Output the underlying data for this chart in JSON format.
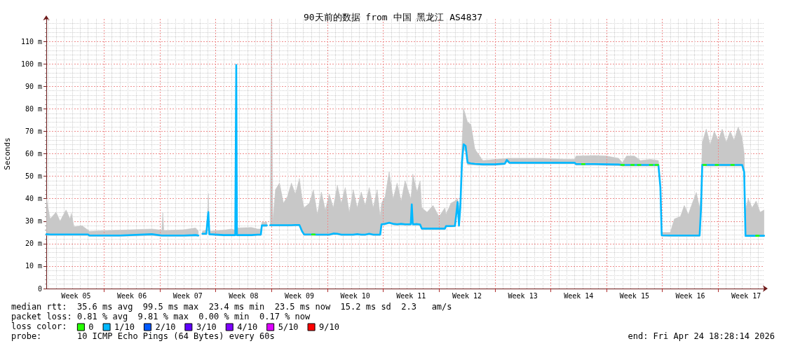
{
  "chart_data": {
    "type": "line",
    "title": "90天前的数据 from 中国 黑龙江 AS4837",
    "ylabel": "Seconds",
    "legend_title": "loss color:",
    "legend": "bottom left",
    "grid": true,
    "annotations": [
      "median rtt:  35.6 ms avg  99.5 ms max  23.4 ms min  23.5 ms now  15.2 ms sd  2.3   am/s",
      "packet loss: 0.81 % avg  9.81 % max  0.00 % min  0.17 % now",
      "probe:       10 ICMP Echo Pings (64 Bytes) every 60s",
      "end: Fri Apr 24 18:28:14 2026"
    ],
    "xlim": [
      "2026-01-24T18:28",
      "2026-04-24T18:28"
    ],
    "xticks": [
      {
        "value": "2026-01-28T12:00",
        "label": "Week 05"
      },
      {
        "value": "2026-02-01",
        "label": null
      },
      {
        "value": "2026-02-04T12:00",
        "label": "Week 06"
      },
      {
        "value": "2026-02-08",
        "label": null
      },
      {
        "value": "2026-02-11T12:00",
        "label": "Week 07"
      },
      {
        "value": "2026-02-15",
        "label": null
      },
      {
        "value": "2026-02-18T12:00",
        "label": "Week 08"
      },
      {
        "value": "2026-02-22",
        "label": null
      },
      {
        "value": "2026-02-25T12:00",
        "label": "Week 09"
      },
      {
        "value": "2026-03-01",
        "label": null
      },
      {
        "value": "2026-03-04T12:00",
        "label": "Week 10"
      },
      {
        "value": "2026-03-08",
        "label": null
      },
      {
        "value": "2026-03-11T12:00",
        "label": "Week 11"
      },
      {
        "value": "2026-03-15",
        "label": null
      },
      {
        "value": "2026-03-18T12:00",
        "label": "Week 12"
      },
      {
        "value": "2026-03-22",
        "label": null
      },
      {
        "value": "2026-03-25T12:00",
        "label": "Week 13"
      },
      {
        "value": "2026-03-29",
        "label": null
      },
      {
        "value": "2026-04-01T12:00",
        "label": "Week 14"
      },
      {
        "value": "2026-04-05",
        "label": null
      },
      {
        "value": "2026-04-08T12:00",
        "label": "Week 15"
      },
      {
        "value": "2026-04-12",
        "label": null
      },
      {
        "value": "2026-04-15T12:00",
        "label": "Week 16"
      },
      {
        "value": "2026-04-19",
        "label": null
      },
      {
        "value": "2026-04-22T12:00",
        "label": "Week 17"
      }
    ],
    "ylim": [
      0,
      120
    ],
    "yticks": [
      0,
      {
        "value": 10,
        "label": "10 m"
      },
      {
        "value": 20,
        "label": "20 m"
      },
      {
        "value": 30,
        "label": "30 m"
      },
      {
        "value": 40,
        "label": "40 m"
      },
      {
        "value": 50,
        "label": "50 m"
      },
      {
        "value": 60,
        "label": "60 m"
      },
      {
        "value": 70,
        "label": "70 m"
      },
      {
        "value": 80,
        "label": "80 m"
      },
      {
        "value": 90,
        "label": "90 m"
      },
      {
        "value": 100,
        "label": "100 m"
      },
      {
        "value": 110,
        "label": "110 m"
      }
    ],
    "x": [
      "2026-01-24T19:00",
      "2026-01-25T06:00",
      "2026-01-26T00:00",
      "2026-01-26T12:00",
      "2026-01-27T06:00",
      "2026-01-27T18:00",
      "2026-01-27T22:00",
      "2026-01-28T06:00",
      "2026-01-29T06:00",
      "2026-01-30T00:00",
      "2026-01-30T04:00",
      "2026-02-03T00:00",
      "2026-02-07T00:00",
      "2026-02-08T06:00",
      "2026-02-08T09:00",
      "2026-02-08T12:00",
      "2026-02-11T00:00",
      "2026-02-12T12:00",
      "2026-02-12T20:00",
      "2026-02-13T02:00",
      "2026-02-13T08:00",
      "2026-02-13T20:00",
      "2026-02-13T23:00",
      "2026-02-14T02:00",
      "2026-02-14T05:00",
      "2026-02-16T00:00",
      "2026-02-17T00:00",
      "2026-02-17T11:00",
      "2026-02-17T14:00",
      "2026-02-17T16:00",
      "2026-02-19T12:00",
      "2026-02-20T06:00",
      "2026-02-20T16:00",
      "2026-02-20T19:00",
      "2026-02-21T10:00",
      "2026-02-21T15:00",
      "2026-02-21T20:00",
      "2026-02-22T00:00",
      "2026-02-22T04:00",
      "2026-02-22T12:00",
      "2026-02-23T00:00",
      "2026-02-23T12:00",
      "2026-02-24T00:00",
      "2026-02-24T12:00",
      "2026-02-25T00:00",
      "2026-02-25T12:00",
      "2026-02-25T20:00",
      "2026-02-26T02:00",
      "2026-02-26T18:00",
      "2026-02-27T06:00",
      "2026-02-27T18:00",
      "2026-02-28T06:00",
      "2026-02-28T18:00",
      "2026-03-01T06:00",
      "2026-03-01T18:00",
      "2026-03-02T06:00",
      "2026-03-02T18:00",
      "2026-03-03T06:00",
      "2026-03-03T18:00",
      "2026-03-04T06:00",
      "2026-03-04T18:00",
      "2026-03-05T06:00",
      "2026-03-05T18:00",
      "2026-03-06T06:00",
      "2026-03-06T18:00",
      "2026-03-07T06:00",
      "2026-03-07T15:00",
      "2026-03-07T19:00",
      "2026-03-08T06:00",
      "2026-03-08T18:00",
      "2026-03-09T06:00",
      "2026-03-09T18:00",
      "2026-03-10T06:00",
      "2026-03-10T18:00",
      "2026-03-11T11:00",
      "2026-03-11T14:00",
      "2026-03-11T17:00",
      "2026-03-12T06:00",
      "2026-03-12T15:00",
      "2026-03-12T20:00",
      "2026-03-13T12:00",
      "2026-03-14T06:00",
      "2026-03-15T00:00",
      "2026-03-15T18:00",
      "2026-03-15T21:00",
      "2026-03-16T12:00",
      "2026-03-17T00:00",
      "2026-03-17T08:00",
      "2026-03-17T12:00",
      "2026-03-17T16:00",
      "2026-03-17T21:00",
      "2026-03-18T02:00",
      "2026-03-18T08:00",
      "2026-03-18T14:00",
      "2026-03-19T00:00",
      "2026-03-19T12:00",
      "2026-03-20T12:00",
      "2026-03-22T00:00",
      "2026-03-23T06:00",
      "2026-03-23T12:00",
      "2026-03-23T20:00",
      "2026-03-26T00:00",
      "2026-03-28T00:00",
      "2026-03-31T00:00",
      "2026-04-01T00:00",
      "2026-04-01T04:00",
      "2026-04-03T12:00",
      "2026-04-05T00:00",
      "2026-04-06T12:00",
      "2026-04-07T00:00",
      "2026-04-07T12:00",
      "2026-04-08T12:00",
      "2026-04-09T06:00",
      "2026-04-10T12:00",
      "2026-04-11T12:00",
      "2026-04-11T18:00",
      "2026-04-11T22:00",
      "2026-04-13T00:00",
      "2026-04-13T12:00",
      "2026-04-14T06:00",
      "2026-04-14T18:00",
      "2026-04-15T06:00",
      "2026-04-15T18:00",
      "2026-04-16T06:00",
      "2026-04-16T16:00",
      "2026-04-16T20:00",
      "2026-04-17T00:00",
      "2026-04-17T12:00",
      "2026-04-18T00:00",
      "2026-04-18T12:00",
      "2026-04-19T00:00",
      "2026-04-19T12:00",
      "2026-04-20T00:00",
      "2026-04-20T12:00",
      "2026-04-21T00:00",
      "2026-04-21T12:00",
      "2026-04-22T00:00",
      "2026-04-22T06:00",
      "2026-04-22T10:00",
      "2026-04-22T18:00",
      "2026-04-23T06:00",
      "2026-04-23T18:00",
      "2026-04-24T06:00",
      "2026-04-24T18:00"
    ],
    "series": [
      {
        "name": "0",
        "color": "#26ff00",
        "x": [
          "2026-02-27T02:00",
          "2026-02-27T10:00",
          "2026-03-15T00:00",
          "2026-04-01T22:00",
          "2026-04-02T06:00",
          "2026-04-04T00:00",
          "2026-04-06T20:00",
          "2026-04-07T04:00",
          "2026-04-07T15:00",
          "2026-04-08T02:00",
          "2026-04-08T10:00",
          "2026-04-08T16:00",
          "2026-04-08T22:00",
          "2026-04-09T06:00",
          "2026-04-10T00:00",
          "2026-04-10T10:00",
          "2026-04-10T18:00",
          "2026-04-11T00:00",
          "2026-04-11T03:00",
          "2026-04-11T11:00",
          "2026-04-14T00:00",
          "2026-04-17T03:00",
          "2026-04-17T11:00",
          "2026-04-18T00:00",
          "2026-04-18T16:00",
          "2026-04-19T00:00",
          "2026-04-19T12:00",
          "2026-04-20T15:00",
          "2026-04-20T23:00",
          "2026-04-22T00:00",
          "2026-04-23T18:00",
          "2026-04-24T02:00"
        ],
        "values": [
          24.1,
          24.1,
          null,
          55.4,
          55.4,
          null,
          55,
          55,
          null,
          55,
          55,
          null,
          55,
          55,
          null,
          55,
          55,
          null,
          55,
          55,
          null,
          55,
          55,
          null,
          55,
          55,
          null,
          55,
          55,
          null,
          23.5,
          23.5
        ]
      },
      {
        "name": "1/10",
        "color": "#00b8ff",
        "values": [
          24.2,
          24.1,
          24.1,
          24.1,
          24.1,
          24.1,
          24.1,
          24.1,
          24.1,
          24.1,
          23.6,
          23.6,
          24.2,
          23.6,
          23.6,
          23.6,
          23.6,
          23.8,
          23.6,
          null,
          24.4,
          24.4,
          29.4,
          34,
          24.2,
          23.8,
          23.8,
          23.8,
          99.5,
          23.8,
          23.8,
          24,
          24,
          28.1,
          28.1,
          null,
          28.2,
          28.2,
          28.2,
          28.2,
          28.2,
          28.2,
          28.2,
          28.2,
          28.3,
          28.3,
          25.5,
          24.1,
          24.1,
          24.1,
          24,
          24,
          24,
          24,
          24.5,
          24.4,
          24,
          24,
          24,
          24,
          24.2,
          24,
          24,
          24.4,
          24,
          24,
          24,
          28.6,
          28.8,
          29.3,
          28.8,
          28.6,
          28.8,
          28.6,
          28.6,
          37.5,
          28.6,
          28.7,
          28.5,
          26.7,
          26.7,
          26.7,
          26.7,
          26.7,
          27.8,
          27.8,
          27.9,
          38.5,
          28,
          36,
          56.3,
          64.2,
          63.5,
          56,
          55.7,
          55.5,
          55.3,
          55.3,
          55.6,
          57.2,
          56,
          56,
          56,
          56,
          56,
          55.4,
          55.4,
          55.3,
          55.2,
          55,
          55,
          55,
          55,
          55,
          55,
          45,
          23.7,
          23.6,
          23.6,
          23.6,
          23.6,
          23.6,
          23.6,
          23.6,
          23.6,
          35,
          55.1,
          55,
          55,
          55,
          55,
          55,
          55,
          55,
          55,
          55,
          55,
          51.9,
          23.5,
          23.5,
          23.5,
          23.5,
          23.5,
          23.5
        ],
        "lower": [
          23.7,
          23.6,
          23.6,
          23.6,
          23.6,
          23.6,
          23.6,
          23.6,
          23.6,
          23.6,
          23.2,
          23.2,
          23.6,
          23.2,
          23.2,
          23.2,
          23.2,
          23.4,
          23.2,
          null,
          24,
          24,
          29,
          33.5,
          23.8,
          23.4,
          23.4,
          23.4,
          69,
          23.4,
          23.4,
          23.6,
          23.6,
          27.7,
          27.7,
          null,
          27.8,
          27.8,
          27.8,
          27.8,
          27.8,
          27.8,
          27.8,
          27.8,
          27.9,
          27.9,
          25,
          23.6,
          23.6,
          23.6,
          23.6,
          23.6,
          23.6,
          23.6,
          24,
          24,
          23.6,
          23.6,
          23.6,
          23.6,
          23.8,
          23.6,
          23.6,
          24,
          23.6,
          23.6,
          23.6,
          28.2,
          28.4,
          28.9,
          28.4,
          28.2,
          28.4,
          28.2,
          28.2,
          36,
          28.2,
          28.3,
          28.1,
          26.3,
          26.3,
          26.3,
          26.3,
          26.3,
          27.4,
          27.4,
          27.5,
          37,
          27.6,
          35,
          55,
          62,
          61,
          55,
          55,
          55,
          54.8,
          54.8,
          55.2,
          56.5,
          55.5,
          55.5,
          55.5,
          55.5,
          55.5,
          54.9,
          54.9,
          54.8,
          54.7,
          54.5,
          54.5,
          54.5,
          54.5,
          54.5,
          54.5,
          44.5,
          23.3,
          23.2,
          23.2,
          23.2,
          23.2,
          23.2,
          23.2,
          23.2,
          23.2,
          34.5,
          54.6,
          54.5,
          54.5,
          54.5,
          54.5,
          54.5,
          54.5,
          54.5,
          54.5,
          54.5,
          54.5,
          51.4,
          23.1,
          23.1,
          23.1,
          23.1,
          23.1,
          23.1
        ],
        "upper": [
          40,
          31,
          34,
          30,
          35,
          31,
          33.5,
          27.5,
          28,
          26,
          25.5,
          26,
          26.5,
          26,
          34,
          25.8,
          26.2,
          27,
          25.5,
          null,
          25.5,
          26,
          32,
          42.3,
          25.5,
          26,
          26.5,
          26,
          99.5,
          27,
          27.2,
          26.5,
          26.5,
          29.5,
          29.5,
          null,
          28.5,
          120,
          30,
          44,
          47,
          38,
          41,
          47,
          42,
          49,
          40,
          36,
          38,
          44,
          33,
          43,
          35,
          42,
          36,
          46,
          38,
          45,
          34,
          44,
          36,
          43,
          37,
          45,
          36,
          44,
          32,
          38,
          41,
          52,
          40,
          47,
          39,
          48,
          40,
          44,
          51,
          43,
          48,
          36,
          34,
          37,
          32,
          36,
          33,
          38,
          39,
          40,
          36,
          40,
          64,
          80,
          77,
          74,
          73,
          62,
          57,
          57.5,
          57.8,
          58,
          58,
          58,
          58,
          57.5,
          57.5,
          59,
          59.2,
          59,
          58,
          56,
          59,
          59,
          57,
          57.5,
          57,
          46,
          25,
          25,
          31,
          32,
          37,
          33,
          38,
          42.8,
          36,
          42,
          65,
          71,
          64,
          70,
          66,
          71,
          65,
          70,
          66,
          72,
          67,
          60,
          35,
          40,
          36,
          39,
          34,
          35
        ]
      },
      {
        "name": "2/10",
        "color": "#0059ff",
        "values": [
          null,
          null,
          null,
          null,
          null,
          null,
          null,
          null,
          null,
          null,
          null,
          null,
          null,
          null,
          null,
          null,
          null,
          null,
          null,
          null,
          null,
          null,
          null,
          null,
          null,
          null,
          null,
          null,
          null,
          null,
          null,
          null,
          null,
          null,
          null,
          null,
          null,
          null,
          null,
          null,
          null,
          null,
          null,
          null,
          null,
          null,
          null,
          null,
          null,
          null,
          null,
          null,
          null,
          null,
          null,
          null,
          null,
          null,
          null,
          null,
          null,
          null,
          null,
          null,
          null,
          null,
          null,
          null,
          null,
          null,
          null,
          null,
          null,
          null,
          null,
          null,
          null,
          null,
          null,
          null,
          null,
          null,
          null,
          null,
          null,
          null,
          null,
          null,
          null,
          null,
          null,
          null,
          null,
          null,
          null,
          null,
          null,
          null,
          null,
          null,
          null,
          null,
          null,
          null,
          null,
          null,
          null,
          null,
          null,
          null,
          null,
          null,
          null,
          null,
          null,
          null,
          null,
          null,
          null,
          null,
          null,
          null,
          null,
          null,
          null,
          null,
          null,
          null,
          null,
          null,
          null,
          null,
          null,
          null,
          null,
          null,
          null,
          null,
          null,
          null,
          null,
          null,
          null,
          null
        ]
      },
      {
        "name": "3/10",
        "color": "#5e00ff",
        "values": [
          null,
          null,
          null,
          null,
          null,
          null,
          null,
          null,
          null,
          null,
          null,
          null,
          null,
          null,
          null,
          null,
          null,
          null,
          null,
          null,
          null,
          null,
          null,
          null,
          null,
          null,
          null,
          null,
          null,
          null,
          null,
          null,
          null,
          null,
          null,
          null,
          null,
          null,
          null,
          null,
          null,
          null,
          null,
          null,
          null,
          null,
          null,
          null,
          null,
          null,
          null,
          null,
          null,
          null,
          null,
          null,
          null,
          null,
          null,
          null,
          null,
          null,
          null,
          null,
          null,
          null,
          null,
          null,
          null,
          null,
          null,
          null,
          null,
          null,
          null,
          null,
          null,
          null,
          null,
          null,
          null,
          null,
          null,
          null,
          null,
          null,
          null,
          null,
          null,
          null,
          null,
          null,
          null,
          null,
          null,
          null,
          null,
          null,
          null,
          null,
          null,
          null,
          null,
          null,
          null,
          null,
          null,
          null,
          null,
          null,
          null,
          null,
          null,
          null,
          null,
          null,
          null,
          null,
          null,
          null,
          null,
          null,
          null,
          null,
          null,
          null,
          null,
          null,
          null,
          null,
          null,
          null,
          null,
          null,
          null,
          null,
          null,
          null,
          null,
          null,
          null,
          null,
          null,
          null
        ]
      },
      {
        "name": "4/10",
        "color": "#7e00ff",
        "values": [
          null,
          null,
          null,
          null,
          null,
          null,
          null,
          null,
          null,
          null,
          null,
          null,
          null,
          null,
          null,
          null,
          null,
          null,
          null,
          null,
          null,
          null,
          null,
          null,
          null,
          null,
          null,
          null,
          null,
          null,
          null,
          null,
          null,
          null,
          null,
          null,
          null,
          null,
          null,
          null,
          null,
          null,
          null,
          null,
          null,
          null,
          null,
          null,
          null,
          null,
          null,
          null,
          null,
          null,
          null,
          null,
          null,
          null,
          null,
          null,
          null,
          null,
          null,
          null,
          null,
          null,
          null,
          null,
          null,
          null,
          null,
          null,
          null,
          null,
          null,
          null,
          null,
          null,
          null,
          null,
          null,
          null,
          null,
          null,
          null,
          null,
          null,
          null,
          null,
          null,
          null,
          null,
          null,
          null,
          null,
          null,
          null,
          null,
          null,
          null,
          null,
          null,
          null,
          null,
          null,
          null,
          null,
          null,
          null,
          null,
          null,
          null,
          null,
          null,
          null,
          null,
          null,
          null,
          null,
          null,
          null,
          null,
          null,
          null,
          null,
          null,
          null,
          null,
          null,
          null,
          null,
          null,
          null,
          null,
          null,
          null,
          null,
          null,
          null,
          null,
          null,
          null,
          null,
          null
        ]
      },
      {
        "name": "5/10",
        "color": "#dd00ff",
        "values": [
          null,
          null,
          null,
          null,
          null,
          null,
          null,
          null,
          null,
          null,
          null,
          null,
          null,
          null,
          null,
          null,
          null,
          null,
          null,
          null,
          null,
          null,
          null,
          null,
          null,
          null,
          null,
          null,
          null,
          null,
          null,
          null,
          null,
          null,
          null,
          null,
          null,
          null,
          null,
          null,
          null,
          null,
          null,
          null,
          null,
          null,
          null,
          null,
          null,
          null,
          null,
          null,
          null,
          null,
          null,
          null,
          null,
          null,
          null,
          null,
          null,
          null,
          null,
          null,
          null,
          null,
          null,
          null,
          null,
          null,
          null,
          null,
          null,
          null,
          null,
          null,
          null,
          null,
          null,
          null,
          null,
          null,
          null,
          null,
          null,
          null,
          null,
          null,
          null,
          null,
          null,
          null,
          null,
          null,
          null,
          null,
          null,
          null,
          null,
          null,
          null,
          null,
          null,
          null,
          null,
          null,
          null,
          null,
          null,
          null,
          null,
          null,
          null,
          null,
          null,
          null,
          null,
          null,
          null,
          null,
          null,
          null,
          null,
          null,
          null,
          null,
          null,
          null,
          null,
          null,
          null,
          null,
          null,
          null,
          null,
          null,
          null,
          null,
          null,
          null,
          null,
          null,
          null,
          null
        ]
      },
      {
        "name": "9/10",
        "color": "#ff0000",
        "values": [
          null,
          null,
          null,
          null,
          null,
          null,
          null,
          null,
          null,
          null,
          null,
          null,
          null,
          null,
          null,
          null,
          null,
          null,
          null,
          null,
          null,
          null,
          null,
          null,
          null,
          null,
          null,
          null,
          null,
          null,
          null,
          null,
          null,
          null,
          null,
          null,
          null,
          null,
          null,
          null,
          null,
          null,
          null,
          null,
          null,
          null,
          null,
          null,
          null,
          null,
          null,
          null,
          null,
          null,
          null,
          null,
          null,
          null,
          null,
          null,
          null,
          null,
          null,
          null,
          null,
          null,
          null,
          null,
          null,
          null,
          null,
          null,
          null,
          null,
          null,
          null,
          null,
          null,
          null,
          null,
          null,
          null,
          null,
          null,
          null,
          null,
          null,
          null,
          null,
          null,
          null,
          null,
          null,
          null,
          null,
          null,
          null,
          null,
          null,
          null,
          null,
          null,
          null,
          null,
          null,
          null,
          null,
          null,
          null,
          null,
          null,
          null,
          null,
          null,
          null,
          null,
          null,
          null,
          null,
          null,
          null,
          null,
          null,
          null,
          null,
          null,
          null,
          null,
          null,
          null,
          null,
          null,
          null,
          null,
          null,
          null,
          null,
          null,
          null,
          null,
          null,
          null,
          null,
          null
        ]
      }
    ]
  }
}
